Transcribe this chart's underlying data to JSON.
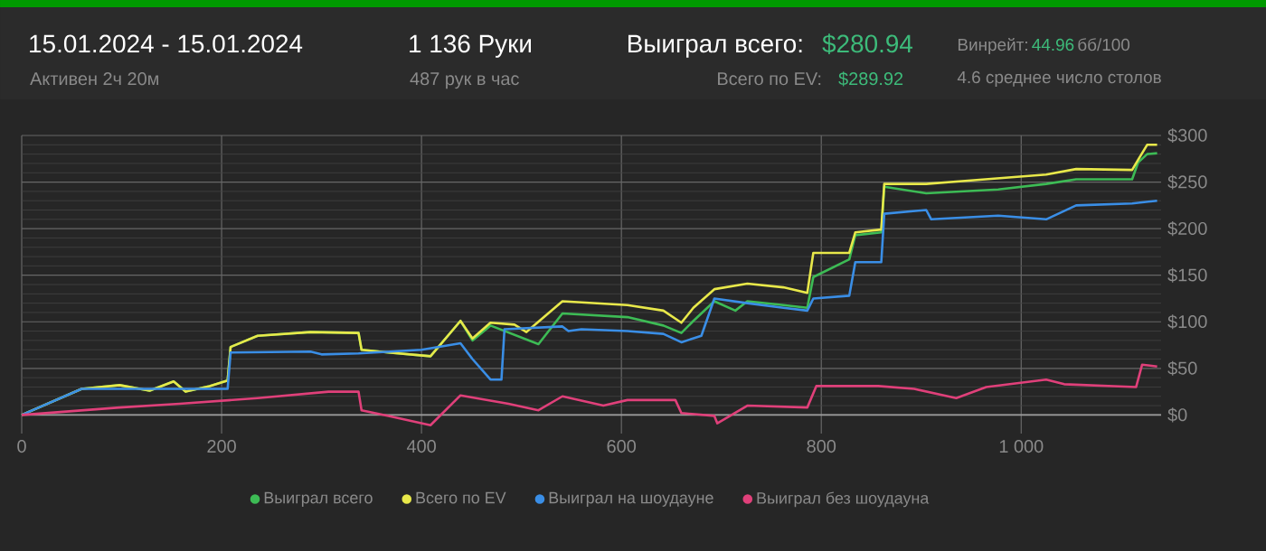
{
  "chart_data": {
    "type": "line",
    "title": "15.01.2024 - 15.01.2024",
    "subtitle": "Активен 2ч 20м",
    "annotations": [
      "1 136 Руки",
      "487 рук в час",
      "Выиграл всего:",
      "$280.94",
      "Всего по EV:",
      "$289.92",
      "Винрейт:",
      "44.96",
      "бб/100",
      "4.6 среднее число столов"
    ],
    "xlim": [
      0,
      1140
    ],
    "ylim": [
      -20,
      300
    ],
    "xticks": [
      0,
      200,
      400,
      600,
      800,
      {
        "value": 1000,
        "label": "1 000"
      }
    ],
    "yticks": [
      {
        "value": 0,
        "label": "$0"
      },
      {
        "value": 50,
        "label": "$50"
      },
      {
        "value": 100,
        "label": "$100"
      },
      {
        "value": 150,
        "label": "$150"
      },
      {
        "value": 200,
        "label": "$200"
      },
      {
        "value": 250,
        "label": "$250"
      },
      {
        "value": 300,
        "label": "$300"
      }
    ],
    "grid": true,
    "legend": "bottom",
    "line_style": "solid",
    "marker": "none",
    "series": [
      {
        "name": "Выиграл всего",
        "color": "#3dbb55",
        "x": [
          0,
          60,
          98,
          128,
          152,
          164,
          188,
          206,
          209,
          236,
          289,
          337,
          340,
          367,
          409,
          439,
          451,
          469,
          517,
          541,
          606,
          642,
          660,
          672,
          693,
          714,
          726,
          762,
          786,
          792,
          828,
          834,
          860,
          863,
          905,
          977,
          1025,
          1055,
          1111,
          1117,
          1126,
          1136
        ],
        "values": [
          0,
          28,
          32,
          26,
          36,
          25,
          31,
          37,
          73,
          85,
          89,
          88,
          70,
          67,
          63,
          101,
          80,
          96,
          76,
          109,
          105,
          96,
          88,
          101,
          122,
          112,
          122,
          118,
          115,
          148,
          167,
          193,
          196,
          245,
          238,
          242,
          248,
          253,
          253,
          271,
          280,
          281
        ]
      },
      {
        "name": "Всего по EV",
        "color": "#e8e84a",
        "x": [
          0,
          60,
          98,
          128,
          152,
          164,
          188,
          206,
          209,
          236,
          289,
          337,
          340,
          367,
          409,
          439,
          451,
          469,
          493,
          505,
          541,
          606,
          642,
          660,
          672,
          693,
          726,
          762,
          786,
          792,
          828,
          834,
          860,
          863,
          905,
          941,
          1025,
          1055,
          1111,
          1117,
          1126,
          1136
        ],
        "values": [
          0,
          28,
          32,
          26,
          36,
          25,
          31,
          37,
          73,
          85,
          89,
          88,
          70,
          67,
          63,
          101,
          82,
          99,
          97,
          89,
          122,
          118,
          112,
          99,
          115,
          135,
          141,
          137,
          131,
          174,
          174,
          196,
          199,
          248,
          248,
          251,
          258,
          264,
          263,
          274,
          290,
          290
        ]
      },
      {
        "name": "Выиграл на шоудауне",
        "color": "#3a8ee6",
        "x": [
          0,
          60,
          206,
          209,
          289,
          300,
          337,
          400,
          439,
          451,
          469,
          480,
          483,
          541,
          547,
          560,
          606,
          642,
          660,
          680,
          693,
          726,
          762,
          786,
          792,
          828,
          834,
          860,
          863,
          905,
          910,
          977,
          1025,
          1055,
          1111,
          1136
        ],
        "values": [
          0,
          28,
          28,
          67,
          68,
          65,
          66,
          70,
          77,
          60,
          38,
          38,
          92,
          95,
          90,
          92,
          90,
          87,
          78,
          85,
          125,
          120,
          115,
          112,
          125,
          128,
          164,
          164,
          216,
          220,
          210,
          214,
          210,
          225,
          227,
          230
        ]
      },
      {
        "name": "Выиграл без шоудауна",
        "color": "#e0407a",
        "x": [
          0,
          98,
          158,
          236,
          307,
          337,
          340,
          367,
          409,
          439,
          487,
          517,
          541,
          582,
          606,
          654,
          660,
          693,
          696,
          726,
          786,
          795,
          857,
          893,
          935,
          965,
          1025,
          1043,
          1115,
          1121,
          1136
        ],
        "values": [
          0,
          8,
          12,
          18,
          25,
          25,
          5,
          -1,
          -11,
          21,
          12,
          5,
          20,
          10,
          16,
          16,
          2,
          -1,
          -9,
          10,
          8,
          31,
          31,
          28,
          18,
          30,
          38,
          33,
          30,
          54,
          52
        ]
      }
    ]
  }
}
